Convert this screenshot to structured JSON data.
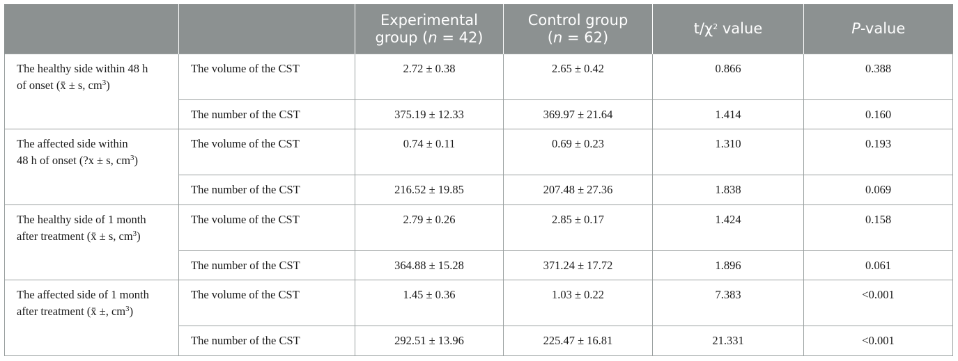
{
  "header": {
    "blank1": "",
    "blank2": "",
    "exp_line1": "Experimental",
    "exp_line2_pre": "group (",
    "n_var": "n",
    "exp_line2_post": " = 42)",
    "ctl_line1": "Control group",
    "ctl_line2_pre": "(",
    "ctl_line2_post": " = 62)",
    "test_pre": "t/χ",
    "test_sup": "2",
    "test_post": " value",
    "p_italic": "P",
    "p_rest": "-value"
  },
  "groups": [
    {
      "label_line1": "The healthy side within 48 h",
      "label_line2": "of onset (x̄ ± s, cm",
      "label_sup": "3",
      "label_close": ")",
      "rows": [
        {
          "measure": "The volume of the CST",
          "exp": "2.72 ± 0.38",
          "ctl": "2.65 ± 0.42",
          "test": "0.866",
          "p": "0.388"
        },
        {
          "measure": "The number of the CST",
          "exp": "375.19 ± 12.33",
          "ctl": "369.97 ± 21.64",
          "test": "1.414",
          "p": "0.160"
        }
      ]
    },
    {
      "label_line1": "The affected side within",
      "label_line2": "48 h of onset (?x ± s, cm",
      "label_sup": "3",
      "label_close": ")",
      "rows": [
        {
          "measure": "The volume of the CST",
          "exp": "0.74 ± 0.11",
          "ctl": "0.69 ± 0.23",
          "test": "1.310",
          "p": "0.193"
        },
        {
          "measure": "The number of the CST",
          "exp": "216.52 ± 19.85",
          "ctl": "207.48 ± 27.36",
          "test": "1.838",
          "p": "0.069"
        }
      ]
    },
    {
      "label_line1": "The healthy side of 1 month",
      "label_line2": "after treatment (x̄ ± s, cm",
      "label_sup": "3",
      "label_close": ")",
      "rows": [
        {
          "measure": "The volume of the CST",
          "exp": "2.79 ± 0.26",
          "ctl": "2.85 ± 0.17",
          "test": "1.424",
          "p": "0.158"
        },
        {
          "measure": "The number of the CST",
          "exp": "364.88 ± 15.28",
          "ctl": "371.24 ± 17.72",
          "test": "1.896",
          "p": "0.061"
        }
      ]
    },
    {
      "label_line1": "The affected side of 1 month",
      "label_line2": "after treatment (x̄ ±, cm",
      "label_sup": "3",
      "label_close": ")",
      "rows": [
        {
          "measure": "The volume of the CST",
          "exp": "1.45 ± 0.36",
          "ctl": "1.03 ± 0.22",
          "test": "7.383",
          "p": "<0.001"
        },
        {
          "measure": "The number of the CST",
          "exp": "292.51 ± 13.96",
          "ctl": "225.47 ± 16.81",
          "test": "21.331",
          "p": "<0.001"
        }
      ]
    }
  ]
}
